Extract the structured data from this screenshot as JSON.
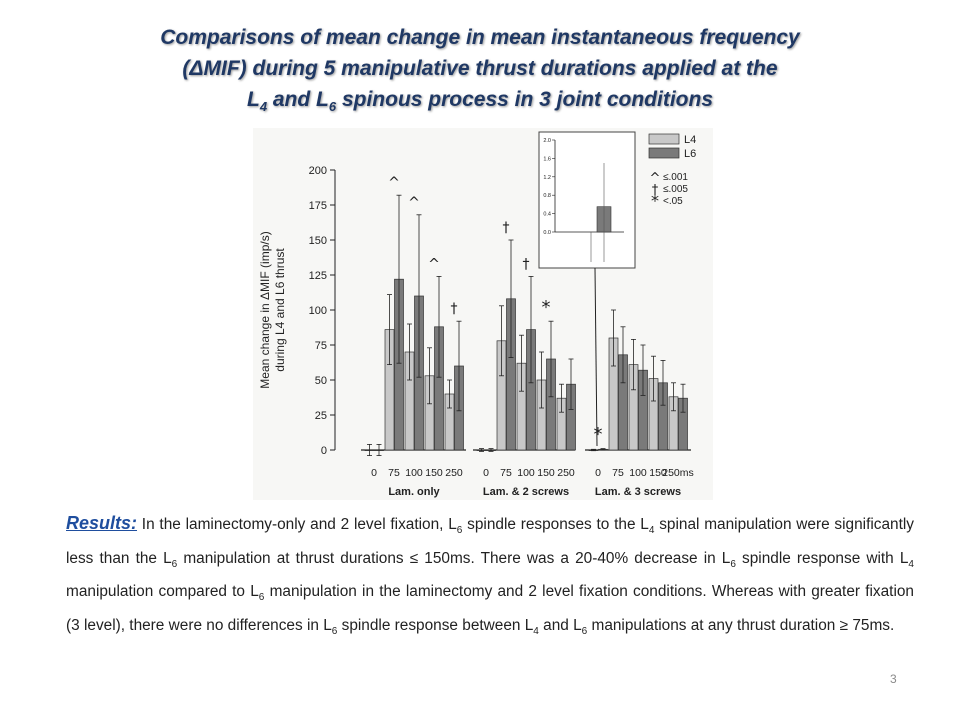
{
  "slide": {
    "title_line1": "Comparisons of mean change in mean instantaneous frequency",
    "title_line2": "(ΔMIF) during 5 manipulative thrust durations applied at the",
    "title_line3_a": "L",
    "title_line3_sub1": "4",
    "title_line3_b": " and L",
    "title_line3_sub2": "6",
    "title_line3_c": " spinous process in 3 joint conditions",
    "page_number": "3"
  },
  "results": {
    "label": "Results:",
    "seg1": " In the laminectomy-only and 2 level fixation, L",
    "sub1": "6",
    "seg2": " spindle responses to the L",
    "sub2": "4",
    "seg3": " spinal manipulation were significantly less than the L",
    "sub3": "6",
    "seg4": " manipulation at thrust durations ≤ 150ms. There was a 20-40% decrease in L",
    "sub4": "6",
    "seg5": " spindle response with L",
    "sub5": "4",
    "seg6": " manipulation compared to L",
    "sub6": "6",
    "seg7": " manipulation in the laminectomy and 2 level fixation conditions. Whereas with greater fixation (3 level), there were no differences in L",
    "sub7": "6",
    "seg8": " spindle response between L",
    "sub8": "4",
    "seg9": " and L",
    "sub9": "6",
    "seg10": " manipulations at any thrust duration ≥ 75ms."
  },
  "chart_data": {
    "type": "bar",
    "ylabel_line1": "Mean change in ΔMIF (imp/s)",
    "ylabel_line2": "during L4 and L6 thrust",
    "ylim": [
      0,
      200
    ],
    "yticks": [
      0,
      25,
      50,
      75,
      100,
      125,
      150,
      175,
      200
    ],
    "colors": {
      "L4": "#c8c8c8",
      "L6": "#7a7a7a"
    },
    "groups": [
      {
        "name": "Lam. only",
        "durations": [
          "0",
          "75",
          "100",
          "150",
          "250"
        ],
        "L4": [
          0,
          86,
          70,
          53,
          40
        ],
        "L6": [
          0,
          122,
          110,
          88,
          60
        ],
        "L4_err": [
          4,
          25,
          20,
          20,
          10
        ],
        "L6_err": [
          4,
          60,
          58,
          36,
          32
        ]
      },
      {
        "name": "Lam. & 2 screws",
        "durations": [
          "0",
          "75",
          "100",
          "150",
          "250"
        ],
        "L4": [
          0,
          78,
          62,
          50,
          37
        ],
        "L6": [
          0,
          108,
          86,
          65,
          47
        ],
        "L4_err": [
          1,
          25,
          20,
          20,
          10
        ],
        "L6_err": [
          1,
          42,
          38,
          27,
          18
        ]
      },
      {
        "name": "Lam. & 3 screws",
        "durations": [
          "0",
          "75",
          "100",
          "150",
          "250ms"
        ],
        "L4": [
          0,
          80,
          61,
          51,
          38
        ],
        "L6": [
          0.5,
          68,
          57,
          48,
          37
        ],
        "L4_err": [
          0.5,
          20,
          18,
          16,
          10
        ],
        "L6_err": [
          0.5,
          20,
          18,
          16,
          10
        ]
      }
    ],
    "significance": [
      {
        "group": 0,
        "duration": 1,
        "symbol": "^"
      },
      {
        "group": 0,
        "duration": 2,
        "symbol": "^"
      },
      {
        "group": 0,
        "duration": 3,
        "symbol": "^"
      },
      {
        "group": 0,
        "duration": 4,
        "symbol": "†"
      },
      {
        "group": 1,
        "duration": 1,
        "symbol": "†"
      },
      {
        "group": 1,
        "duration": 2,
        "symbol": "†"
      },
      {
        "group": 1,
        "duration": 3,
        "symbol": "*"
      },
      {
        "group": 2,
        "duration": 0,
        "symbol": "*"
      }
    ],
    "legend": [
      {
        "name": "L4",
        "color": "#c8c8c8"
      },
      {
        "name": "L6",
        "color": "#7a7a7a"
      }
    ],
    "sig_legend": [
      {
        "symbol": "^",
        "text": "≤.001"
      },
      {
        "symbol": "†",
        "text": "≤.005"
      },
      {
        "symbol": "*",
        "text": "<.05"
      }
    ],
    "inset": {
      "yticks": [
        "0.0",
        "0.4",
        "0.8",
        "1.2",
        "1.6",
        "2.0"
      ],
      "ylim": [
        0,
        2.0
      ],
      "L4": 0.0,
      "L6": 0.55,
      "L4_err_low": 0.8,
      "L6_err_high": 1.5,
      "L6_err_low": 0.3
    }
  }
}
